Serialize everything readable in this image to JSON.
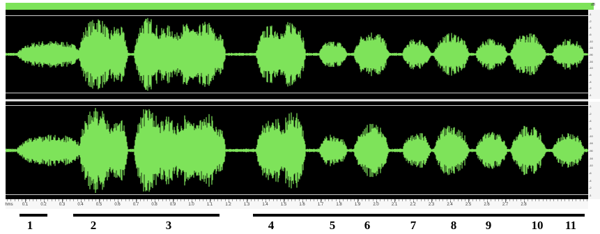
{
  "scale_unit": "dB",
  "db_labels": [
    "-1",
    "-2",
    "-4",
    "-6",
    "-10",
    "-16",
    "-90",
    "-16",
    "-10",
    "-6",
    "-4",
    "-2",
    "-1"
  ],
  "ruler": {
    "unit_label": "hms",
    "ticks": [
      "0.1",
      "0.2",
      "0.3",
      "0.4",
      "0.5",
      "0.6",
      "0.7",
      "0.8",
      "0.9",
      "1.0",
      "1.1",
      "1.2",
      "1.3",
      "1.4",
      "1.5",
      "1.6",
      "1.7",
      "1.8",
      "1.9",
      "2.0",
      "2.1",
      "2.2",
      "2.3",
      "2.4",
      "2.5",
      "2.6",
      "2.7",
      "2.8"
    ]
  },
  "waveform_color": "#7ee35a",
  "segments": [
    {
      "label": "1"
    },
    {
      "label": "2"
    },
    {
      "label": "3"
    },
    {
      "label": "4"
    },
    {
      "label": "5"
    },
    {
      "label": "6"
    },
    {
      "label": "7"
    },
    {
      "label": "8"
    },
    {
      "label": "9"
    },
    {
      "label": "10"
    },
    {
      "label": "11"
    }
  ]
}
